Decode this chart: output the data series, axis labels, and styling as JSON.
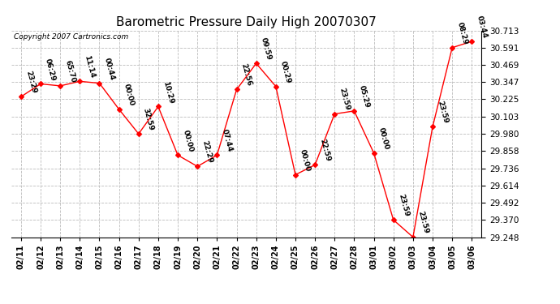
{
  "title": "Barometric Pressure Daily High 20070307",
  "copyright": "Copyright 2007 Cartronics.com",
  "dates": [
    "02/11",
    "02/12",
    "02/13",
    "02/14",
    "02/15",
    "02/16",
    "02/17",
    "02/18",
    "02/19",
    "02/20",
    "02/21",
    "02/22",
    "02/23",
    "02/24",
    "02/25",
    "02/26",
    "02/27",
    "02/28",
    "03/01",
    "03/02",
    "03/03",
    "03/04",
    "03/05",
    "03/06"
  ],
  "values": [
    30.243,
    30.334,
    30.32,
    30.352,
    30.339,
    30.154,
    29.98,
    30.173,
    29.829,
    29.749,
    29.829,
    30.294,
    30.479,
    30.316,
    29.69,
    29.76,
    30.121,
    30.142,
    29.844,
    29.37,
    29.248,
    30.03,
    30.591,
    30.635
  ],
  "time_labels": [
    "23:29",
    "06:29",
    "65:70",
    "11:14",
    "00:44",
    "00:00",
    "32:59",
    "10:29",
    "00:00",
    "22:29",
    "07:44",
    "22:56",
    "09:59",
    "00:29",
    "00:00",
    "22:59",
    "23:59",
    "05:29",
    "00:00",
    "23:59",
    "23:59",
    "23:59",
    "08:29",
    "03:44"
  ],
  "ylim_min": 29.248,
  "ylim_max": 30.713,
  "yticks": [
    29.248,
    29.37,
    29.492,
    29.614,
    29.736,
    29.858,
    29.98,
    30.103,
    30.225,
    30.347,
    30.469,
    30.591,
    30.713
  ],
  "line_color": "red",
  "marker_color": "red",
  "marker": "D",
  "marker_size": 3,
  "grid_color": "#bbbbbb",
  "bg_color": "white",
  "title_fontsize": 11,
  "label_fontsize": 6.5
}
